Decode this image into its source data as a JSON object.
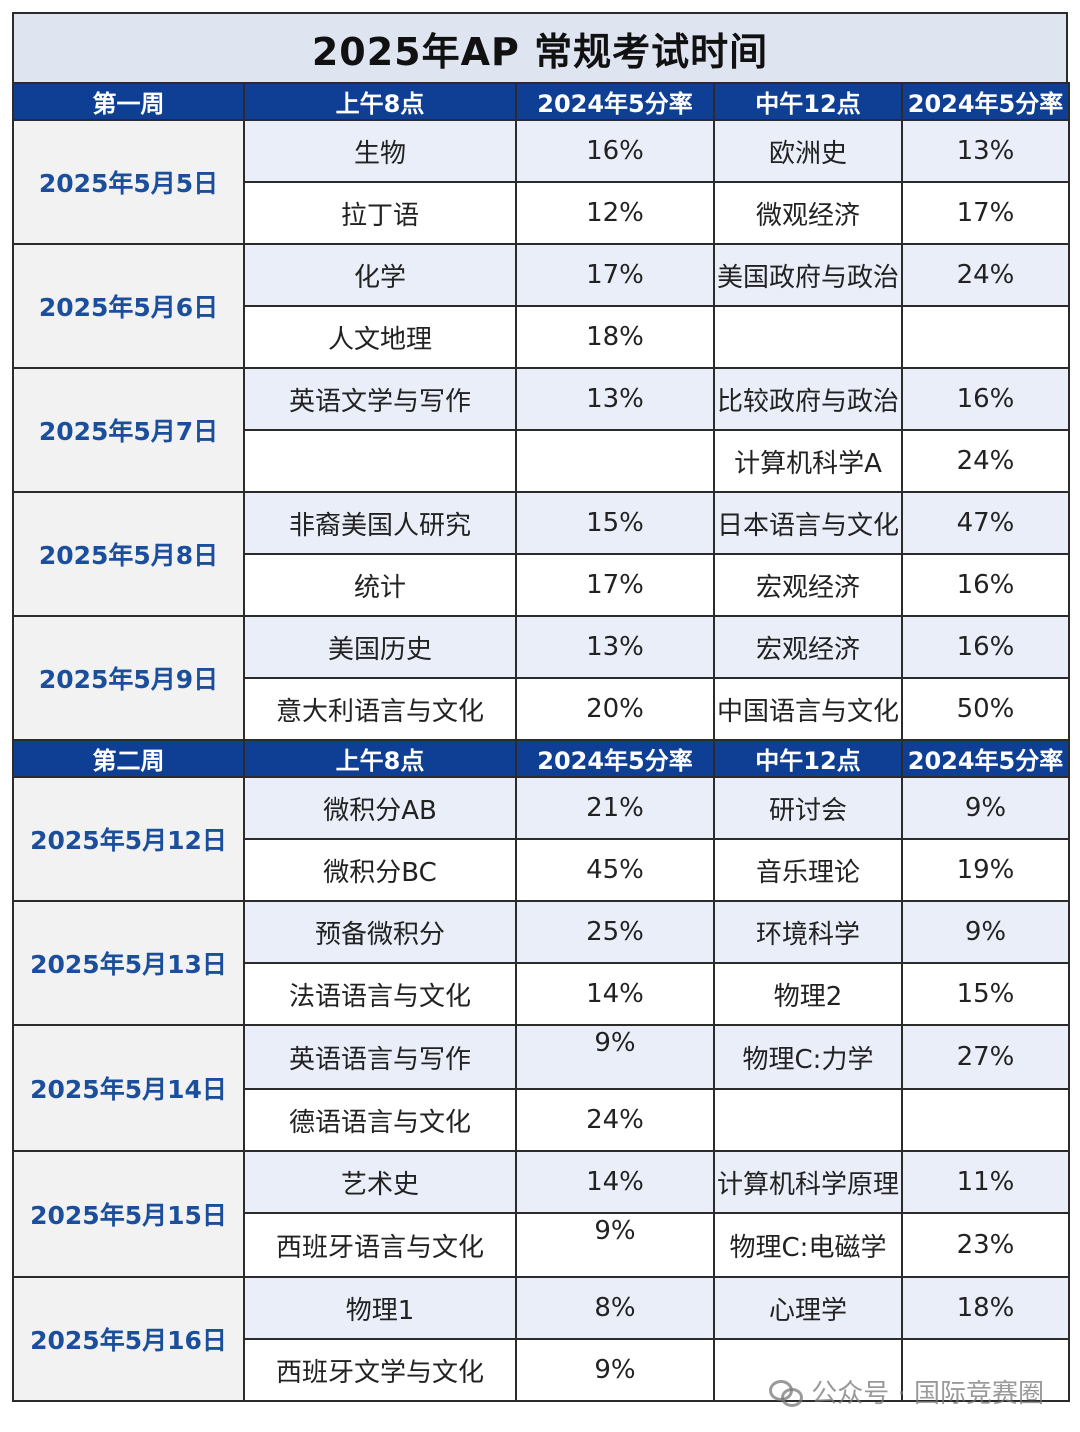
{
  "title": "2025年AP 常规考试时间",
  "weeks": [
    {
      "header": [
        "第一周",
        "上午8点",
        "2024年5分率",
        "中午12点",
        "2024年5分率"
      ],
      "days": [
        {
          "date": "2025年5月5日",
          "rows": [
            [
              "生物",
              "16%",
              "欧洲史",
              "13%"
            ],
            [
              "拉丁语",
              "12%",
              "微观经济",
              "17%"
            ]
          ]
        },
        {
          "date": "2025年5月6日",
          "rows": [
            [
              "化学",
              "17%",
              "美国政府与政治",
              "24%"
            ],
            [
              "人文地理",
              "18%",
              "",
              ""
            ]
          ]
        },
        {
          "date": "2025年5月7日",
          "rows": [
            [
              "英语文学与写作",
              "13%",
              "比较政府与政治",
              "16%"
            ],
            [
              "",
              "",
              "计算机科学A",
              "24%"
            ]
          ]
        },
        {
          "date": "2025年5月8日",
          "rows": [
            [
              "非裔美国人研究",
              "15%",
              "日本语言与文化",
              "47%"
            ],
            [
              "统计",
              "17%",
              "宏观经济",
              "16%"
            ]
          ]
        },
        {
          "date": "2025年5月9日",
          "rows": [
            [
              "美国历史",
              "13%",
              "宏观经济",
              "16%"
            ],
            [
              "意大利语言与文化",
              "20%",
              "中国语言与文化",
              "50%"
            ]
          ]
        }
      ]
    },
    {
      "header": [
        "第二周",
        "上午8点",
        "2024年5分率",
        "中午12点",
        "2024年5分率"
      ],
      "days": [
        {
          "date": "2025年5月12日",
          "rows": [
            [
              "微积分AB",
              "21%",
              "研讨会",
              "9%"
            ],
            [
              "微积分BC",
              "45%",
              "音乐理论",
              "19%"
            ]
          ]
        },
        {
          "date": "2025年5月13日",
          "rows": [
            [
              "预备微积分",
              "25%",
              "环境科学",
              "9%"
            ],
            [
              "法语语言与文化",
              "14%",
              "物理2",
              "15%"
            ]
          ]
        },
        {
          "date": "2025年5月14日",
          "rows": [
            [
              "英语语言与写作",
              "9%",
              "物理C:力学",
              "27%"
            ],
            [
              "德语语言与文化",
              "24%",
              "",
              ""
            ]
          ]
        },
        {
          "date": "2025年5月15日",
          "rows": [
            [
              "艺术史",
              "14%",
              "计算机科学原理",
              "11%"
            ],
            [
              "西班牙语言与文化",
              "9%",
              "物理C:电磁学",
              "23%"
            ]
          ]
        },
        {
          "date": "2025年5月16日",
          "rows": [
            [
              "物理1",
              "8%",
              "心理学",
              "18%"
            ],
            [
              "西班牙文学与文化",
              "9%",
              "",
              ""
            ]
          ]
        }
      ]
    }
  ],
  "watermark": "公众号 · 国际竞赛圈"
}
